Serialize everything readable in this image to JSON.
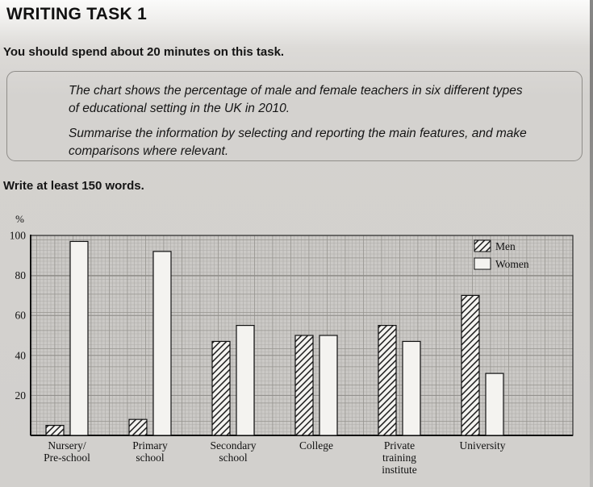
{
  "page": {
    "title": "WRITING TASK 1",
    "instruction": "You should spend about 20 minutes on this task.",
    "prompt_line1": "The chart shows the percentage of male and female teachers in six different types of educational setting in the UK in 2010.",
    "prompt_line2": "Summarise the information by selecting and reporting the main features, and make comparisons where relevant.",
    "word_count_note": "Write at least 150 words."
  },
  "chart_data": {
    "type": "bar",
    "title": "",
    "xlabel": "",
    "ylabel": "%",
    "ylim": [
      0,
      100
    ],
    "yticks": [
      20,
      40,
      60,
      80,
      100
    ],
    "grid": "fine graph-paper grid, on",
    "legend_position": "top-right inside plot",
    "categories": [
      "Nursery/\nPre-school",
      "Primary\nschool",
      "Secondary\nschool",
      "College",
      "Private\ntraining\ninstitute",
      "University"
    ],
    "series": [
      {
        "name": "Men",
        "values": [
          5,
          8,
          47,
          50,
          55,
          70
        ],
        "fill": "diagonal-hatch"
      },
      {
        "name": "Women",
        "values": [
          97,
          92,
          55,
          50,
          47,
          31
        ],
        "fill": "plain"
      }
    ],
    "colors": {
      "bar_outline": "#111111",
      "bar_plain_fill": "#f4f3f0",
      "plot_background": "#cbc9c6",
      "grid_fine": "#aeaca8",
      "grid_major": "#8f8d89"
    }
  }
}
